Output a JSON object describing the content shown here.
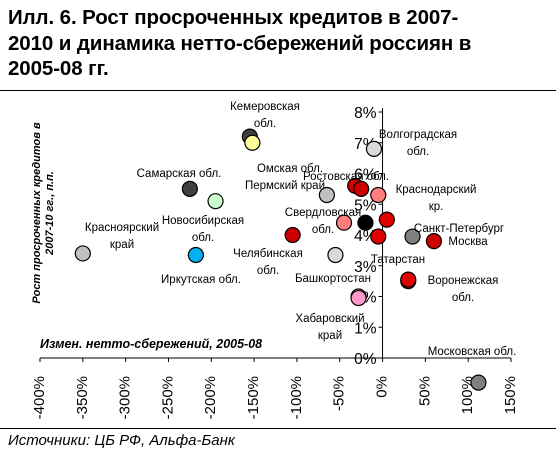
{
  "title_lines": [
    "Илл. 6. Рост просроченных кредитов в 2007-",
    "2010 и динамика нетто-сбережений россиян в",
    "2005-08 гг."
  ],
  "source": "Источники: ЦБ РФ, Альфа-Банк",
  "chart_data": {
    "type": "scatter",
    "xlabel": "Измен. нетто-сбережений, 2005-08",
    "ylabel": "Рост просроченных кредитов в 2007-10 гг., п.п.",
    "xlim": [
      -400,
      150
    ],
    "ylim": [
      -1,
      8
    ],
    "x_ticks": [
      "-400%",
      "-350%",
      "-300%",
      "-250%",
      "-200%",
      "-150%",
      "-100%",
      "-50%",
      "0%",
      "50%",
      "100%",
      "150%"
    ],
    "y_ticks": [
      "0%",
      "1%",
      "2%",
      "3%",
      "4%",
      "5%",
      "6%",
      "7%",
      "8%"
    ],
    "grid": false,
    "points": [
      {
        "label": "Кемеровская обл.",
        "x": -155,
        "y": 7.2,
        "color": "#404040"
      },
      {
        "label": "",
        "x": -152,
        "y": 7.0,
        "color": "#ffff99"
      },
      {
        "label": "Волгоградская обл.",
        "x": -10,
        "y": 6.8,
        "color": "#d9d9d9"
      },
      {
        "label": "Омская обл.",
        "x": -65,
        "y": 5.3,
        "color": "#c0c0c0"
      },
      {
        "label": "Пермский край",
        "x": -32,
        "y": 5.6,
        "color": "#cc0000"
      },
      {
        "label": "Ростовская обл.",
        "x": -25,
        "y": 5.5,
        "color": "#cc0000"
      },
      {
        "label": "Краснодарский кр.",
        "x": -5,
        "y": 5.3,
        "color": "#ff7f7f"
      },
      {
        "label": "Самарская обл.",
        "x": -225,
        "y": 5.5,
        "color": "#404040"
      },
      {
        "label": "Новосибирская обл.",
        "x": -195,
        "y": 5.1,
        "color": "#ccffcc"
      },
      {
        "label": "Свердловская обл.",
        "x": -45,
        "y": 4.4,
        "color": "#ff7f7f"
      },
      {
        "label": "",
        "x": -20,
        "y": 4.4,
        "color": "#000000"
      },
      {
        "label": "",
        "x": 5,
        "y": 4.5,
        "color": "#e00000"
      },
      {
        "label": "",
        "x": -5,
        "y": 3.95,
        "color": "#e00000"
      },
      {
        "label": "Челябинская обл.",
        "x": -105,
        "y": 4.0,
        "color": "#cc0000"
      },
      {
        "label": "Санкт-Петербург",
        "x": 35,
        "y": 3.95,
        "color": "#808080"
      },
      {
        "label": "Москва",
        "x": 60,
        "y": 3.8,
        "color": "#cc0000"
      },
      {
        "label": "Красноярский край",
        "x": -350,
        "y": 3.4,
        "color": "#c0c0c0"
      },
      {
        "label": "Иркутская обл.",
        "x": -218,
        "y": 3.35,
        "color": "#00b0f0"
      },
      {
        "label": "",
        "x": -55,
        "y": 3.35,
        "color": "#d9d9d9"
      },
      {
        "label": "Татарстан",
        "x": 30,
        "y": 2.5,
        "color": "#e00000"
      },
      {
        "label": "Воронежская обл.",
        "x": 30,
        "y": 2.55,
        "color": "#e00000"
      },
      {
        "label": "Башкортостан",
        "x": -28,
        "y": 2.0,
        "color": "#ff99cc"
      },
      {
        "label": "Хабаровский край",
        "x": -28,
        "y": 1.95,
        "color": "#ff99cc"
      },
      {
        "label": "Московская обл.",
        "x": 112,
        "y": -0.8,
        "color": "#808080"
      }
    ]
  }
}
